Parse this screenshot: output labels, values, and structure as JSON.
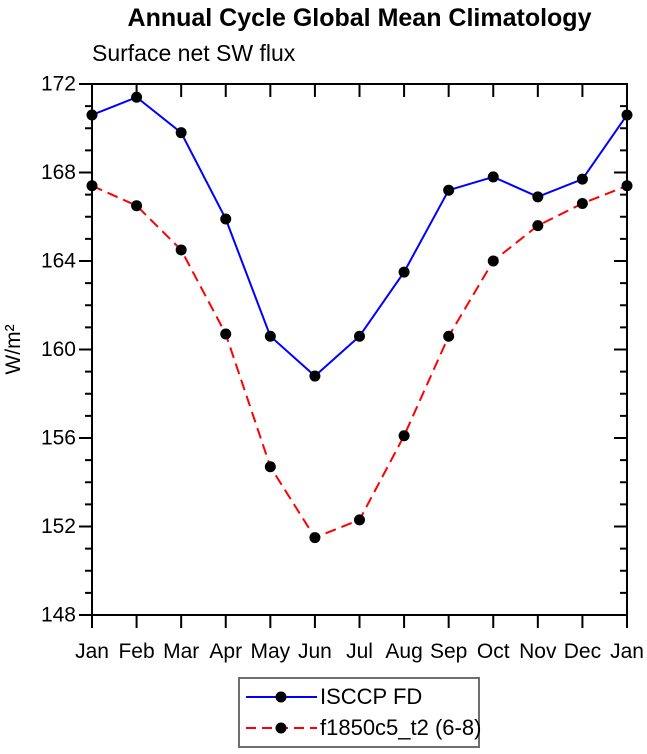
{
  "title": "Annual Cycle Global Mean Climatology",
  "subtitle": "Surface net SW flux",
  "chart_data": {
    "type": "line",
    "x_categories": [
      "Jan",
      "Feb",
      "Mar",
      "Apr",
      "May",
      "Jun",
      "Jul",
      "Aug",
      "Sep",
      "Oct",
      "Nov",
      "Dec",
      "Jan"
    ],
    "xlabel": "",
    "ylabel": "W/m²",
    "ylim": [
      148,
      172
    ],
    "yticks": [
      172,
      168,
      164,
      160,
      156,
      152,
      148
    ],
    "ytick_minor_step": 1,
    "grid": false,
    "legend_position": "bottom-center",
    "series": [
      {
        "name": "ISCCP FD",
        "color": "#0000ff",
        "line_style": "solid",
        "marker": "filled-circle",
        "marker_color": "#000000",
        "values": [
          170.6,
          171.4,
          169.8,
          165.9,
          160.6,
          158.8,
          160.6,
          163.5,
          167.2,
          167.8,
          166.9,
          167.7,
          170.6
        ]
      },
      {
        "name": "f1850c5_t2 (6-8)",
        "color": "#ff0000",
        "line_style": "dashed",
        "marker": "filled-circle",
        "marker_color": "#000000",
        "values": [
          167.4,
          166.5,
          164.5,
          160.7,
          154.7,
          151.5,
          152.3,
          156.1,
          160.6,
          164.0,
          165.6,
          166.6,
          167.4
        ]
      }
    ]
  },
  "colors": {
    "axis": "#000000",
    "legend_border": "#6e6e6e",
    "background": "#ffffff"
  }
}
